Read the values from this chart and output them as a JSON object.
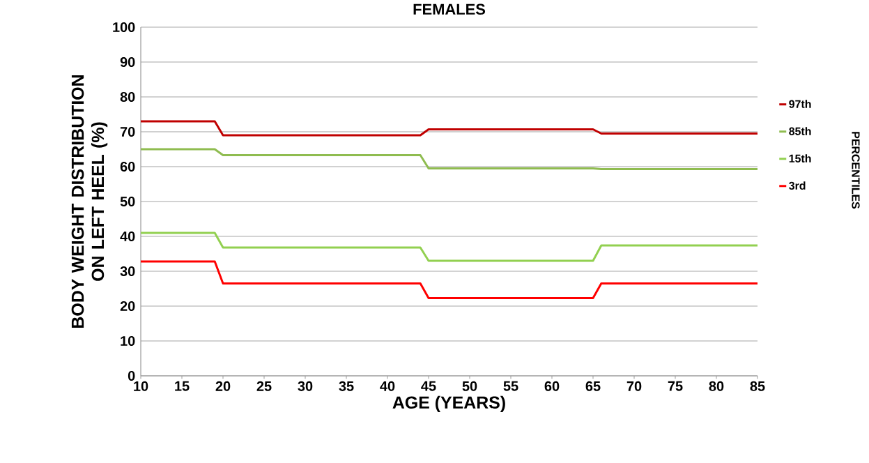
{
  "chart_data": {
    "type": "step",
    "title": "FEMALES",
    "xlabel": "AGE (YEARS)",
    "ylabel": "BODY WEIGHT DISTRIBUTION ON LEFT HEEL (%)",
    "legend_title": "PERCENTILES",
    "xlim": [
      10,
      85
    ],
    "xticks": [
      10,
      15,
      20,
      25,
      30,
      35,
      40,
      45,
      50,
      55,
      60,
      65,
      70,
      75,
      80,
      85
    ],
    "ylim": [
      0,
      100
    ],
    "yticks": [
      0,
      10,
      20,
      30,
      40,
      50,
      60,
      70,
      80,
      90,
      100
    ],
    "grid": "y",
    "legend": "right",
    "marker": "none",
    "line_style": "solid",
    "series": [
      {
        "name": "97th",
        "color": "#c00000",
        "x": [
          10,
          19,
          20,
          44,
          45,
          65,
          66,
          85
        ],
        "values": [
          73,
          73,
          69,
          69,
          70.7,
          70.7,
          69.5,
          69.5
        ]
      },
      {
        "name": "85th",
        "color": "#8fbc50",
        "x": [
          10,
          19,
          20,
          44,
          45,
          65,
          66,
          85
        ],
        "values": [
          65,
          65,
          63.3,
          63.3,
          59.5,
          59.5,
          59.3,
          59.3
        ]
      },
      {
        "name": "15th",
        "color": "#92d050",
        "x": [
          10,
          19,
          20,
          44,
          45,
          65,
          66,
          85
        ],
        "values": [
          41,
          41,
          36.8,
          36.8,
          33,
          33,
          37.4,
          37.4
        ]
      },
      {
        "name": "3rd",
        "color": "#ff0000",
        "x": [
          10,
          19,
          20,
          44,
          45,
          65,
          66,
          85
        ],
        "values": [
          32.8,
          32.8,
          26.5,
          26.5,
          22.3,
          22.3,
          26.5,
          26.5
        ]
      }
    ]
  }
}
